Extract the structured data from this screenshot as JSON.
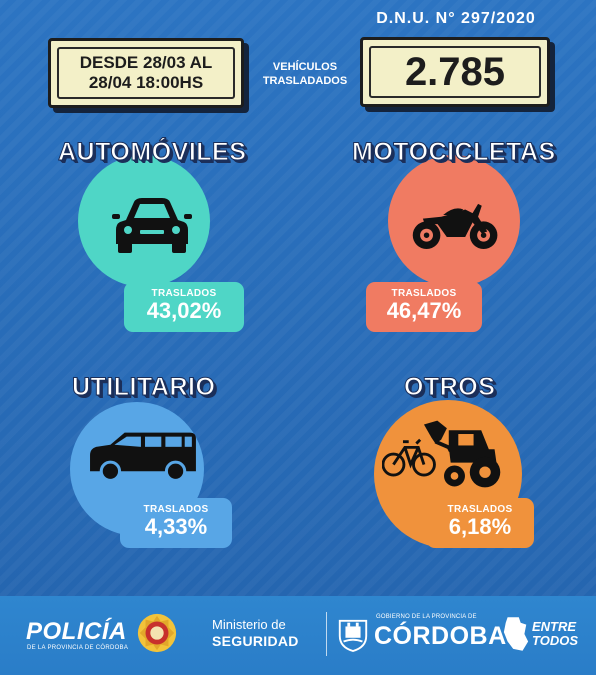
{
  "decree": "D.N.U. N° 297/2020",
  "date_range": {
    "line1": "DESDE 28/03 AL",
    "line2": "28/04 18:00HS"
  },
  "vehicles_label": {
    "line1": "VEHÍCULOS",
    "line2": "TRASLADADOS"
  },
  "vehicles_total": "2.785",
  "categories": [
    {
      "title": "AUTOMÓVILES",
      "label": "TRASLADOS",
      "percent": "43,02%",
      "color": "#4fd6c6",
      "icon": "car-icon"
    },
    {
      "title": "MOTOCICLETAS",
      "label": "TRASLADOS",
      "percent": "46,47%",
      "color": "#f07b62",
      "icon": "motorcycle-icon"
    },
    {
      "title": "UTILITARIO",
      "label": "TRASLADOS",
      "percent": "4,33%",
      "color": "#58a6e6",
      "icon": "van-icon"
    },
    {
      "title": "OTROS",
      "label": "TRASLADOS",
      "percent": "6,18%",
      "color": "#f0923c",
      "icon": "tractor-bicycle-icon"
    }
  ],
  "footer": {
    "police_title": "POLICÍA",
    "police_subtitle": "DE LA PROVINCIA DE CÓRDOBA",
    "ministry_line1": "Ministerio de",
    "ministry_line2": "SEGURIDAD",
    "gov_small": "GOBIERNO DE LA PROVINCIA DE",
    "province": "CÓRDOBA",
    "slogan_line1": "ENTRE",
    "slogan_line2": "TODOS"
  },
  "colors": {
    "background": "#2a6fbb",
    "footer": "#2f86cf",
    "title_outline": "#1b2f5a",
    "box_fill": "#f3f0c8"
  }
}
